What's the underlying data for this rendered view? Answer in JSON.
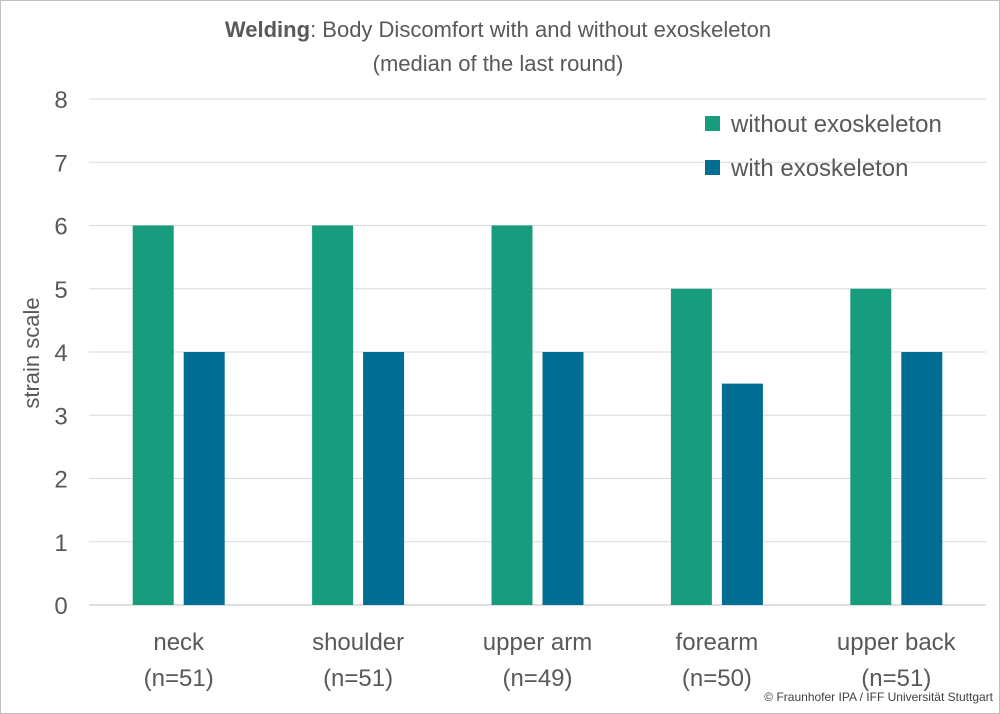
{
  "chart_data": {
    "type": "bar",
    "title_bold": "Welding",
    "title_rest": ": Body Discomfort with and without exoskeleton",
    "subtitle": "(median of the last round)",
    "ylabel": "strain scale",
    "xlabel": "",
    "ylim": [
      0,
      8
    ],
    "yticks": [
      0,
      1,
      2,
      3,
      4,
      5,
      6,
      7,
      8
    ],
    "grid": true,
    "legend_position": "top-right",
    "categories": [
      {
        "name": "neck",
        "n": "(n=51)"
      },
      {
        "name": "shoulder",
        "n": "(n=51)"
      },
      {
        "name": "upper arm",
        "n": "(n=49)"
      },
      {
        "name": "forearm",
        "n": "(n=50)"
      },
      {
        "name": "upper back",
        "n": "(n=51)"
      }
    ],
    "series": [
      {
        "name": "without exoskeleton",
        "color": "#179c7d",
        "values": [
          6,
          6,
          6,
          5,
          5
        ]
      },
      {
        "name": "with exoskeleton",
        "color": "#006e92",
        "values": [
          4,
          4,
          4,
          3.5,
          4
        ]
      }
    ]
  },
  "footer": {
    "copyright": "© Fraunhofer IPA / IFF Universität Stuttgart"
  }
}
